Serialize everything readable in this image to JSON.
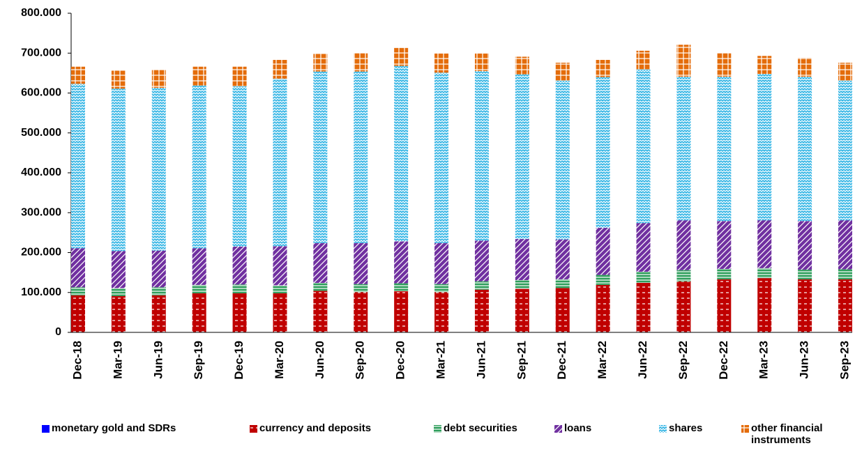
{
  "chart_data": {
    "type": "stacked_bar",
    "categories": [
      "Dec-18",
      "Mar-19",
      "Jun-19",
      "Sep-19",
      "Dec-19",
      "Mar-20",
      "Jun-20",
      "Sep-20",
      "Dec-20",
      "Mar-21",
      "Jun-21",
      "Sep-21",
      "Dec-21",
      "Mar-22",
      "Jun-22",
      "Sep-22",
      "Dec-22",
      "Mar-23",
      "Jun-23",
      "Sep-23"
    ],
    "series": [
      {
        "name": "monetary gold and SDRs",
        "color": "#0000ff",
        "values": [
          1000,
          1000,
          1000,
          1000,
          1000,
          1000,
          1000,
          1000,
          1000,
          1000,
          1000,
          1000,
          1000,
          1000,
          1000,
          1000,
          1000,
          1000,
          1000,
          1000
        ]
      },
      {
        "name": "currency and deposits",
        "color": "#c00000",
        "values": [
          92000,
          90000,
          92000,
          97000,
          97000,
          97000,
          103000,
          100000,
          102000,
          100000,
          106000,
          108000,
          110000,
          118000,
          123000,
          127000,
          132000,
          135000,
          132000,
          132000
        ]
      },
      {
        "name": "debt securities",
        "color": "#2e9e5b",
        "values": [
          20000,
          20000,
          20000,
          21000,
          22000,
          20000,
          20000,
          20000,
          20000,
          20000,
          21000,
          22000,
          22000,
          25000,
          28000,
          28000,
          26000,
          25000,
          24000,
          25000
        ]
      },
      {
        "name": "loans",
        "color": "#7030a0",
        "values": [
          98000,
          93000,
          92000,
          92000,
          95000,
          98000,
          100000,
          103000,
          105000,
          103000,
          102000,
          103000,
          100000,
          118000,
          122000,
          125000,
          120000,
          120000,
          122000,
          123000
        ]
      },
      {
        "name": "shares",
        "color": "#33b5e5",
        "values": [
          412000,
          407000,
          408000,
          408000,
          402000,
          420000,
          430000,
          430000,
          440000,
          427000,
          425000,
          413000,
          398000,
          378000,
          385000,
          360000,
          362000,
          367000,
          362000,
          350000
        ]
      },
      {
        "name": "other financial instruments",
        "color": "#e46c0a",
        "values": [
          43000,
          45000,
          46000,
          47000,
          49000,
          47000,
          44000,
          47000,
          45000,
          48000,
          44000,
          44000,
          45000,
          43000,
          47000,
          80000,
          60000,
          45000,
          47000,
          45000
        ]
      }
    ],
    "ylim": [
      0,
      800000
    ],
    "yticks": [
      0,
      {
        "value": 100000,
        "label": "100.000"
      },
      {
        "value": 200000,
        "label": "200.000"
      },
      {
        "value": 300000,
        "label": "300.000"
      },
      {
        "value": 400000,
        "label": "400.000"
      },
      {
        "value": 500000,
        "label": "500.000"
      },
      {
        "value": 600000,
        "label": "600.000"
      },
      {
        "value": 700000,
        "label": "700.000"
      },
      {
        "value": 800000,
        "label": "800.000"
      }
    ]
  }
}
